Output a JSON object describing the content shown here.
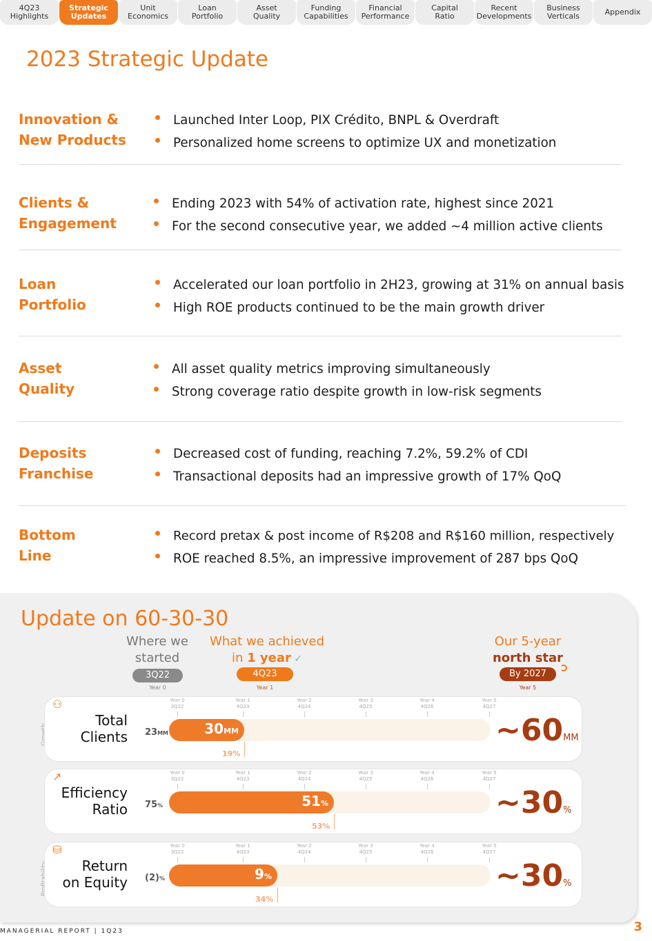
{
  "nav": {
    "tabs": [
      {
        "label": "4Q23\nHighlights"
      },
      {
        "label": "Strategic\nUpdates"
      },
      {
        "label": "Unit\nEconomics"
      },
      {
        "label": "Loan\nPortfolio"
      },
      {
        "label": "Asset\nQuality"
      },
      {
        "label": "Funding\nCapabilities"
      },
      {
        "label": "Financial\nPerformance"
      },
      {
        "label": "Capital\nRatio"
      },
      {
        "label": "Recent\nDevelopments"
      },
      {
        "label": "Business\nVerticals"
      },
      {
        "label": "Appendix"
      }
    ],
    "active": "Strategic\nUpdates"
  },
  "page_title": "2023 Strategic Update",
  "sections": [
    {
      "category": "Innovation &\nNew Products",
      "bullets": [
        "Launched Inter Loop, PIX Crédito, BNPL & Overdraft",
        "Personalized home screens to optimize UX and monetization"
      ]
    },
    {
      "category": "Clients &\nEngagement",
      "bullets": [
        "Ending 2023 with 54% of activation rate, highest since 2021",
        "For the second consecutive year, we added ~4 million active clients"
      ]
    },
    {
      "category": "Loan\nPortfolio",
      "bullets": [
        "Accelerated our loan portfolio in 2H23, growing at 31% on annual basis",
        "High ROE products continued to be the main growth driver"
      ]
    },
    {
      "category": "Asset\nQuality",
      "bullets": [
        "All asset quality metrics improving simultaneously",
        "Strong coverage ratio despite growth in low-risk segments"
      ]
    },
    {
      "category": "Deposits\nFranchise",
      "bullets": [
        "Decreased cost of funding, reaching 7.2%, 59.2% of CDI",
        "Transactional deposits had an impressive growth of 17% QoQ"
      ]
    },
    {
      "category": "Bottom\nLine",
      "bullets": [
        "Record pretax  & post income of R$208 and R$160 million, respectively",
        "ROE reached 8.5%, an impressive improvement of 287 bps QoQ"
      ]
    }
  ],
  "update": {
    "title": "Update on 60-30-30",
    "col_start": {
      "heading": "Where we\nstarted",
      "pill": "3Q22",
      "year": "Year 0"
    },
    "col_achieved": {
      "heading_1": "What we achieved",
      "heading_2": "in ",
      "heading_bold": "1 year",
      "pill": "4Q23",
      "year": "Year 1"
    },
    "col_target": {
      "heading_1": "Our 5-year",
      "heading_bold": "north star",
      "pill": "By 2027",
      "year": "Year 5"
    },
    "ticks": [
      {
        "year": "Year 0",
        "quarter": "3Q22"
      },
      {
        "year": "Year 1",
        "quarter": "4Q23"
      },
      {
        "year": "Year 2",
        "quarter": "4Q24"
      },
      {
        "year": "Year 3",
        "quarter": "4Q25"
      },
      {
        "year": "Year 4",
        "quarter": "4Q26"
      },
      {
        "year": "Year 5",
        "quarter": "4Q27"
      }
    ],
    "side_growth": "Growth",
    "side_profitability": "Profitability",
    "metrics": [
      {
        "name": "Total\nClients",
        "start": "23",
        "start_unit": "MM",
        "current": "30",
        "current_unit": "MM",
        "progress": 0.233,
        "prev": "19%",
        "target": "~60",
        "target_unit": "MM"
      },
      {
        "name": "Efficiency\nRatio",
        "start": "75",
        "start_unit": "%",
        "current": "51",
        "current_unit": "%",
        "progress": 0.512,
        "prev": "53%",
        "target": "~30",
        "target_unit": "%"
      },
      {
        "name": "Return\non Equity",
        "start": "(2)",
        "start_unit": "%",
        "current": "9",
        "current_unit": "%",
        "progress": 0.337,
        "prev": "34%",
        "target": "~30",
        "target_unit": "%"
      }
    ],
    "colors": {
      "accent": "#ef7a1c",
      "dark": "#a63c12",
      "fill": "#ef7a2a",
      "track": "#fbf3e8"
    }
  },
  "footer": "MANAGERIAL REPORT | 1Q23",
  "page_number": "3"
}
